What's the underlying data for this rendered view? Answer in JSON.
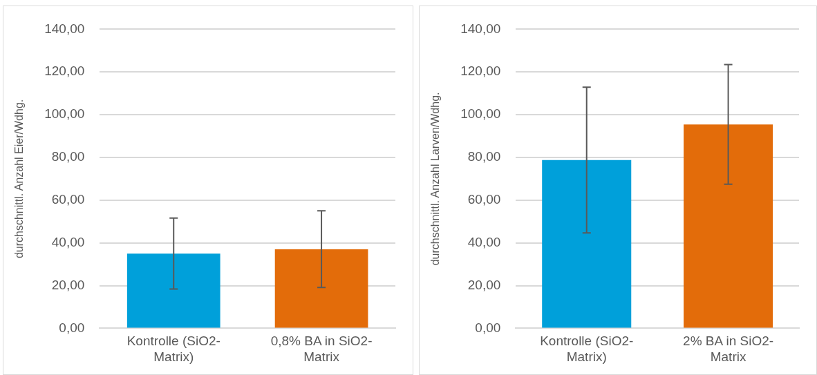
{
  "chart_data": [
    {
      "type": "bar",
      "categories": [
        "Kontrolle (SiO2-Matrix)",
        "0,8% BA in SiO2-Matrix"
      ],
      "values": [
        35.0,
        37.0
      ],
      "colors": [
        "#00a0da",
        "#e36c0a"
      ],
      "errors": [
        [
          18.4,
          51.6
        ],
        [
          19.1,
          55.0
        ]
      ],
      "ylabel": "durchschnittl. Anzahl Eier/Wdhg.",
      "ylim": [
        0,
        140
      ],
      "yticks": [
        {
          "value": 0,
          "label": "0,00"
        },
        {
          "value": 20,
          "label": "20,00"
        },
        {
          "value": 40,
          "label": "40,00"
        },
        {
          "value": 60,
          "label": "60,00"
        },
        {
          "value": 80,
          "label": "80,00"
        },
        {
          "value": 100,
          "label": "100,00"
        },
        {
          "value": 120,
          "label": "120,00"
        },
        {
          "value": 140,
          "label": "140,00"
        }
      ],
      "grid": "y",
      "legend": false
    },
    {
      "type": "bar",
      "categories": [
        "Kontrolle (SiO2-Matrix)",
        "2% BA in SiO2-Matrix"
      ],
      "values": [
        78.8,
        95.4
      ],
      "colors": [
        "#00a0da",
        "#e36c0a"
      ],
      "errors": [
        [
          44.7,
          112.9
        ],
        [
          67.5,
          123.5
        ]
      ],
      "ylabel": "durchschnittl. Anzahl Larven/Wdhg.",
      "ylim": [
        0,
        140
      ],
      "yticks": [
        {
          "value": 0,
          "label": "0,00"
        },
        {
          "value": 20,
          "label": "20,00"
        },
        {
          "value": 40,
          "label": "40,00"
        },
        {
          "value": 60,
          "label": "60,00"
        },
        {
          "value": 80,
          "label": "80,00"
        },
        {
          "value": 100,
          "label": "100,00"
        },
        {
          "value": 120,
          "label": "120,00"
        },
        {
          "value": 140,
          "label": "140,00"
        }
      ],
      "grid": "y",
      "legend": false
    }
  ]
}
